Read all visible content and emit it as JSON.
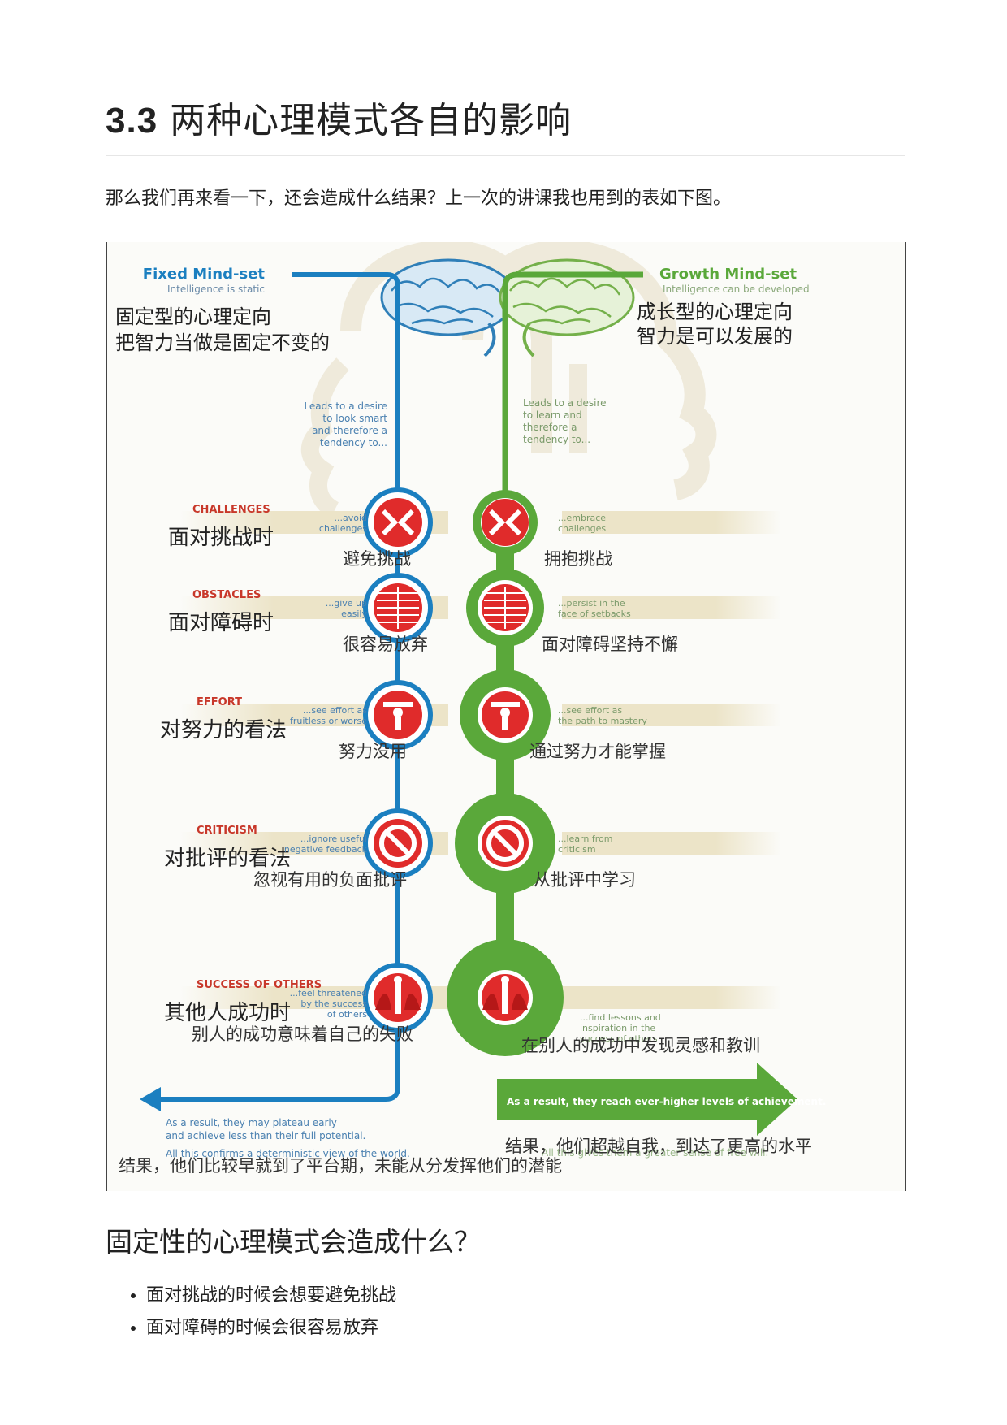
{
  "heading": {
    "number": "3.3",
    "text": "两种心理模式各自的影响"
  },
  "intro": "那么我们再来看一下，还会造成什么结果？上一次的讲课我也用到的表如下图。",
  "figure": {
    "fixed": {
      "title_en": "Fixed Mind-set",
      "subtitle_en": "Intelligence is static",
      "title_zh": "固定型的心理定向",
      "subtitle_zh": "把智力当做是固定不变的",
      "lead_en": [
        "Leads to a desire",
        "to look smart",
        "and therefore a",
        "tendency to..."
      ],
      "color": "#1b7fc0"
    },
    "growth": {
      "title_en": "Growth Mind-set",
      "subtitle_en": "Intelligence can be developed",
      "title_zh": "成长型的心理定向",
      "subtitle_zh": "智力是可以发展的",
      "lead_en": [
        "Leads to a desire",
        "to learn and",
        "therefore a",
        "tendency to..."
      ],
      "color": "#5aa83a"
    },
    "rows": [
      {
        "label_en": "CHALLENGES",
        "label_zh": "面对挑战时",
        "fixed_en": [
          "...avoid",
          "challenges"
        ],
        "fixed_zh": "避免挑战",
        "growth_en": [
          "...embrace",
          "challenges"
        ],
        "growth_zh": "拥抱挑战"
      },
      {
        "label_en": "OBSTACLES",
        "label_zh": "面对障碍时",
        "fixed_en": [
          "...give up",
          "easily"
        ],
        "fixed_zh": "很容易放弃",
        "growth_en": [
          "...persist in the",
          "face of setbacks"
        ],
        "growth_zh": "面对障碍坚持不懈"
      },
      {
        "label_en": "EFFORT",
        "label_zh": "对努力的看法",
        "fixed_en": [
          "...see effort as",
          "fruitless or worse"
        ],
        "fixed_zh": "努力没用",
        "growth_en": [
          "...see effort as",
          "the path to mastery"
        ],
        "growth_zh": "通过努力才能掌握"
      },
      {
        "label_en": "CRITICISM",
        "label_zh": "对批评的看法",
        "fixed_en": [
          "...ignore useful",
          "negative feedback"
        ],
        "fixed_zh": "忽视有用的负面批评",
        "growth_en": [
          "...learn from",
          "criticism"
        ],
        "growth_zh": "从批评中学习"
      },
      {
        "label_en": "SUCCESS OF OTHERS",
        "label_zh": "其他人成功时",
        "fixed_en": [
          "...feel threatened",
          "by the success",
          "of others"
        ],
        "fixed_zh": "别人的成功意味着自己的失败",
        "growth_en": [
          "...find lessons and",
          "inspiration in the",
          "success of others"
        ],
        "growth_zh": "在别人的成功中发现灵感和教训"
      }
    ],
    "result_fixed_en": [
      "As a result, they may plateau early",
      "and achieve less than their full potential."
    ],
    "result_fixed_en2": "All this confirms a deterministic view of the world.",
    "result_fixed_zh": "结果，他们比较早就到了平台期，未能从分发挥他们的潜能",
    "result_growth_en": "As a result, they reach ever-higher levels of achievement.",
    "result_growth_en2": "All this gives them a greater sense of free will.",
    "result_growth_zh": "结果，他们超越自我，到达了更高的水平",
    "icons": [
      "blocked-arrows-icon",
      "brick-wall-icon",
      "weightlifter-icon",
      "no-entry-icon",
      "figure-between-hands-icon"
    ],
    "colors": {
      "red": "#e02b2b",
      "band": "#ece4c8",
      "head": "#f1ecdf"
    }
  },
  "section2": {
    "title": "固定性的心理模式会造成什么？",
    "items": [
      "面对挑战的时候会想要避免挑战",
      "面对障碍的时候会很容易放弃"
    ]
  }
}
